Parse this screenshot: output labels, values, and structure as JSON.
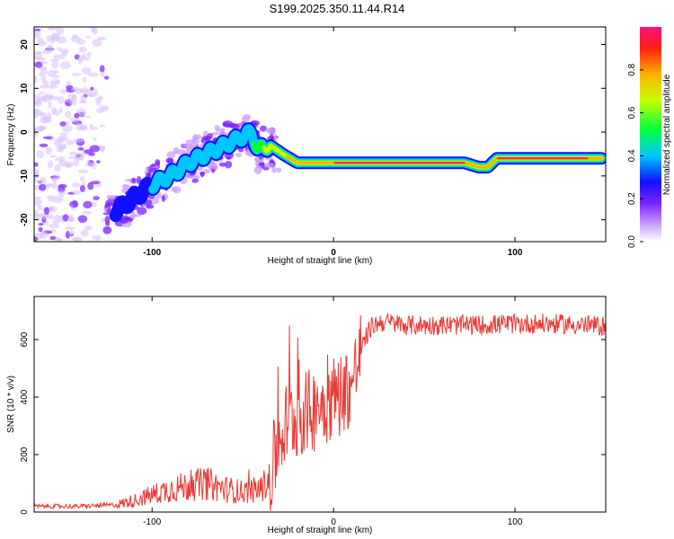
{
  "title": "S199.2025.350.11.44.R14",
  "chart_data": [
    {
      "type": "heatmap",
      "title": "S199.2025.350.11.44.R14",
      "xlabel": "Height of straight line (km)",
      "ylabel": "Frequency (Hz)",
      "xlim": [
        -165,
        150
      ],
      "ylim": [
        -25,
        24
      ],
      "xticks": [
        -100,
        0,
        100
      ],
      "yticks": [
        -20,
        -10,
        0,
        10,
        20
      ],
      "colorbar": {
        "label": "Normalized spectral amplitude",
        "range": [
          0,
          1
        ],
        "ticks": [
          0.0,
          0.2,
          0.4,
          0.6,
          0.8
        ]
      },
      "ridge": {
        "x": [
          -120,
          -110,
          -100,
          -90,
          -80,
          -70,
          -60,
          -50,
          -45,
          -42,
          -35,
          -28,
          -20,
          -10,
          0,
          20,
          40,
          60,
          72,
          80,
          85,
          90,
          100,
          120,
          130,
          140,
          148
        ],
        "freq": [
          -18,
          -15,
          -12,
          -10,
          -7,
          -5,
          -3,
          -1,
          0,
          -4,
          -3,
          -5,
          -7,
          -7,
          -7,
          -7,
          -7,
          -7,
          -7,
          -8,
          -8,
          -6,
          -6,
          -6,
          -6,
          -6,
          -6
        ],
        "amplitude": [
          0.2,
          0.25,
          0.3,
          0.3,
          0.35,
          0.35,
          0.3,
          0.35,
          0.4,
          0.5,
          0.6,
          0.7,
          0.8,
          0.85,
          0.9,
          0.9,
          0.9,
          0.9,
          0.9,
          0.8,
          0.75,
          0.9,
          0.95,
          0.95,
          0.95,
          0.9,
          0.85
        ]
      },
      "noise_region": {
        "x": [
          -165,
          -125
        ],
        "freq": [
          -25,
          24
        ],
        "amplitude": 0.05
      }
    },
    {
      "type": "line",
      "xlabel": "Height of straight line (km)",
      "ylabel": "SNR (10 * v/v)",
      "xlim": [
        -165,
        150
      ],
      "ylim": [
        0,
        750
      ],
      "xticks": [
        -100,
        0,
        100
      ],
      "yticks": [
        0,
        200,
        400,
        600
      ],
      "color": "#e83a35",
      "series": [
        {
          "name": "SNR",
          "x": [
            -165,
            -140,
            -120,
            -110,
            -100,
            -90,
            -80,
            -70,
            -60,
            -50,
            -40,
            -35,
            -30,
            -25,
            -20,
            -10,
            0,
            10,
            15,
            20,
            25,
            30,
            40,
            60,
            80,
            100,
            120,
            140,
            150
          ],
          "y": [
            20,
            20,
            25,
            40,
            60,
            80,
            90,
            100,
            80,
            70,
            80,
            120,
            250,
            320,
            330,
            360,
            400,
            440,
            560,
            640,
            660,
            660,
            650,
            650,
            650,
            655,
            655,
            650,
            645
          ]
        }
      ]
    }
  ]
}
